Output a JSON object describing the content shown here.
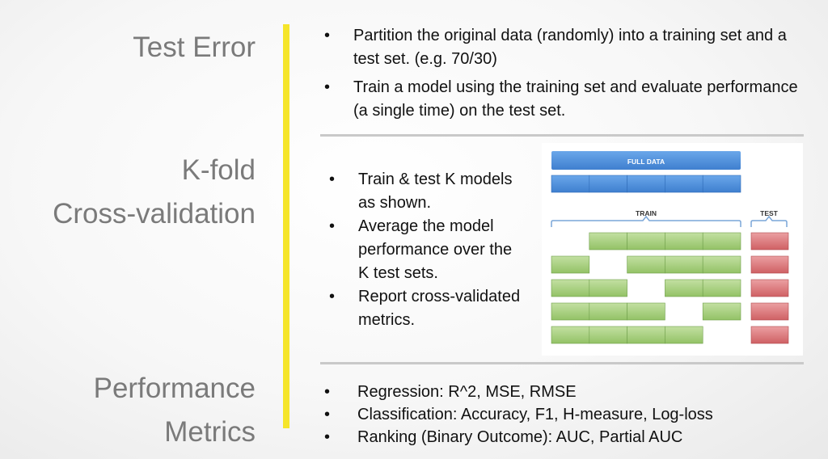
{
  "sections": {
    "test_error": {
      "title": "Test Error",
      "bullets": [
        "Partition the original data (randomly) into a training set and a test set.  (e.g. 70/30)",
        "Train a model using the training set and evaluate performance (a single time) on the test set."
      ]
    },
    "kfold": {
      "title_line1": "K-fold",
      "title_line2": "Cross-validation",
      "bullets": [
        "Train & test K models as shown.",
        "Average the model performance over the K test sets.",
        "Report cross-validated metrics."
      ]
    },
    "metrics": {
      "title_line1": "Performance",
      "title_line2": "Metrics",
      "bullets": [
        "Regression:  R^2, MSE, RMSE",
        "Classification:  Accuracy, F1, H-measure, Log-loss",
        "Ranking (Binary Outcome):  AUC, Partial AUC"
      ]
    }
  },
  "bullet_glyph": "•",
  "diagram": {
    "full_data_label": "FULL DATA",
    "train_label": "TRAIN",
    "test_label": "TEST",
    "folds": 5,
    "train_rows": [
      [
        false,
        true,
        true,
        true,
        true
      ],
      [
        true,
        false,
        true,
        true,
        true
      ],
      [
        true,
        true,
        false,
        true,
        true
      ],
      [
        true,
        true,
        true,
        false,
        true
      ],
      [
        true,
        true,
        true,
        true,
        false
      ]
    ],
    "colors": {
      "blue": "#4e8fd9",
      "green": "#a5cf7c",
      "red": "#d9777a",
      "accent": "#f5e52a"
    }
  }
}
